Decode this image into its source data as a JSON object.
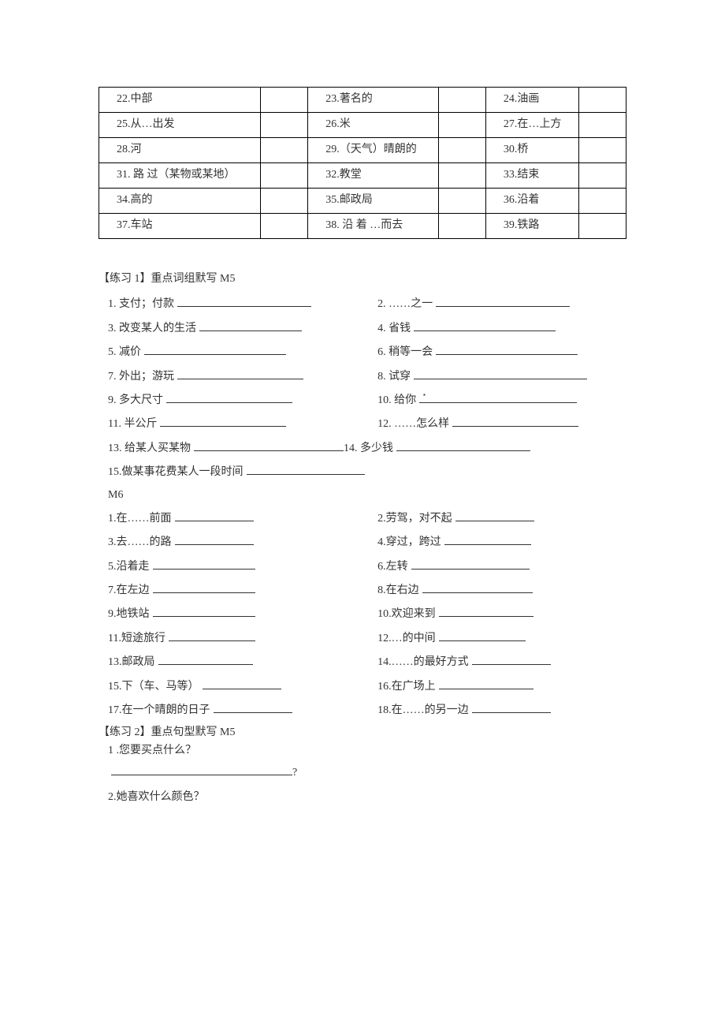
{
  "table": {
    "rows": [
      [
        {
          "label": "22.中部"
        },
        {
          "label": "23.著名的"
        },
        {
          "label": "24.油画"
        }
      ],
      [
        {
          "label": "25.从…出发"
        },
        {
          "label": "26.米"
        },
        {
          "label": "27.在…上方"
        }
      ],
      [
        {
          "label": "28.河"
        },
        {
          "label": "29.（天气）晴朗的"
        },
        {
          "label": "30.桥"
        }
      ],
      [
        {
          "label": "31. 路 过（某物或某地）"
        },
        {
          "label": "32.教堂"
        },
        {
          "label": "33.结束"
        }
      ],
      [
        {
          "label": "34.高的"
        },
        {
          "label": "35.邮政局"
        },
        {
          "label": "36.沿着"
        }
      ],
      [
        {
          "label": "37.车站"
        },
        {
          "label": "38. 沿 着 …而去"
        },
        {
          "label": "39.铁路"
        }
      ]
    ]
  },
  "exercise1": {
    "title": "【练习 1】重点词组默写  M5",
    "m5": [
      {
        "left": "1. 支付；付款",
        "lblank": 170,
        "right": "2. ……之一",
        "rblank": 170
      },
      {
        "left": "3. 改变某人的生活",
        "lblank": 130,
        "right": "4. 省钱",
        "rblank": 180
      },
      {
        "left": "5. 减价",
        "lblank": 180,
        "right": "6. 稍等一会",
        "rblank": 180
      },
      {
        "left": "7. 外出；游玩",
        "lblank": 160,
        "right": "8. 试穿",
        "rblank": 220
      },
      {
        "left": "9. 多大尺寸",
        "lblank": 160,
        "right": "10. 给你",
        "rblank": 200
      },
      {
        "left": "11. 半公斤",
        "lblank": 160,
        "right": "12.  ……怎么样",
        "rblank": 160
      },
      {
        "left": "13. 给某人买某物",
        "lblank": 190,
        "right": "14. 多少钱",
        "rblank": 170,
        "nogap": true
      },
      {
        "left": "15.做某事花费某人一段时间",
        "lblank": 150
      }
    ],
    "m6title": "M6",
    "m6": [
      {
        "left": "1.在……前面",
        "lblank": 100,
        "right": "2.劳驾，对不起",
        "rblank": 100
      },
      {
        "left": "3.去……的路",
        "lblank": 100,
        "right": "4.穿过，跨过",
        "rblank": 110
      },
      {
        "left": "5.沿着走",
        "lblank": 130,
        "right": "6.左转",
        "rblank": 150
      },
      {
        "left": "7.在左边",
        "lblank": 130,
        "right": " 8.在右边",
        "rblank": 140
      },
      {
        "left": "9.地铁站",
        "lblank": 130,
        "right": "10.欢迎来到",
        "rblank": 120
      },
      {
        "left": "11.短途旅行",
        "lblank": 110,
        "right": "12.…的中间",
        "rblank": 110
      },
      {
        "left": "13.邮政局",
        "lblank": 120,
        "right": "14.……的最好方式",
        "rblank": 80
      },
      {
        "left": "15.下（车、马等）",
        "lblank": 90,
        "right": "16.在广场上",
        "rblank": 120
      },
      {
        "left": "17.在一个晴朗的日子",
        "lblank": 80,
        "right": "18.在……的另一边",
        "rblank": 80
      }
    ]
  },
  "exercise2": {
    "title": "【练习 2】重点句型默写  M5",
    "q1": "1 .您要买点什么？",
    "q1blank": 230,
    "q1suffix": "?",
    "q2": "2.她喜欢什么颜色？"
  },
  "dot": "▪"
}
